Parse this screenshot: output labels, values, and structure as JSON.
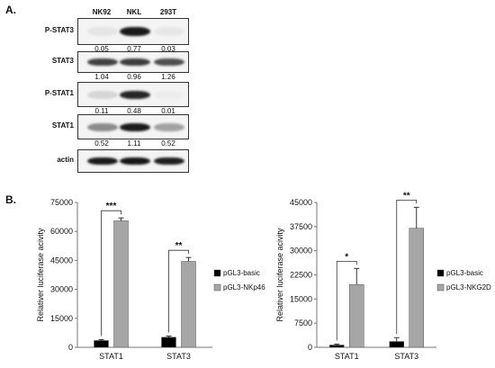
{
  "panel_a": {
    "label": "A.",
    "columns": [
      "NK92",
      "NKL",
      "293T"
    ],
    "blots": [
      {
        "name": "P-STAT3",
        "quant": [
          "0.05",
          "0.77",
          "0.03"
        ],
        "intensity": [
          0.05,
          0.95,
          0.04
        ]
      },
      {
        "name": "STAT3",
        "quant": [
          "1.04",
          "0.96",
          "1.26"
        ],
        "intensity": [
          0.78,
          0.8,
          0.72
        ]
      },
      {
        "name": "P-STAT1",
        "quant": [
          "0.11",
          "0.48",
          "0.01"
        ],
        "intensity": [
          0.12,
          0.9,
          0.02
        ]
      },
      {
        "name": "STAT1",
        "quant": [
          "0.52",
          "1.11",
          "0.52"
        ],
        "intensity": [
          0.45,
          0.95,
          0.35
        ]
      },
      {
        "name": "actin",
        "quant": [],
        "intensity": [
          0.95,
          0.97,
          0.93
        ]
      }
    ]
  },
  "panel_b": {
    "label": "B."
  },
  "chart_data": [
    {
      "type": "bar",
      "categories": [
        "STAT1",
        "STAT3"
      ],
      "series": [
        {
          "name": "pGL3-basic",
          "values": [
            3500,
            5200
          ],
          "errors": [
            500,
            600
          ],
          "color": "#000000"
        },
        {
          "name": "pGL3-NKp46",
          "values": [
            65500,
            44500
          ],
          "errors": [
            1500,
            2000
          ],
          "color": "#a6a6a6"
        }
      ],
      "ylabel": "Relativer luciferase acivity",
      "ylim": [
        0,
        75000
      ],
      "yticks": [
        "0",
        "15000",
        "30000",
        "45000",
        "60000",
        "75000"
      ],
      "significance": [
        "***",
        "**"
      ],
      "legend": "right"
    },
    {
      "type": "bar",
      "categories": [
        "STAT1",
        "STAT3"
      ],
      "series": [
        {
          "name": "pGL3-basic",
          "values": [
            700,
            1800
          ],
          "errors": [
            300,
            1200
          ],
          "color": "#000000"
        },
        {
          "name": "pGL3-NKG2D",
          "values": [
            19500,
            37000
          ],
          "errors": [
            5000,
            6500
          ],
          "color": "#a6a6a6"
        }
      ],
      "ylabel": "Relativer luciferase acivity",
      "ylim": [
        0,
        45000
      ],
      "yticks": [
        "0",
        "7500",
        "15000",
        "22500",
        "30000",
        "37500",
        "45000"
      ],
      "significance": [
        "*",
        "**"
      ],
      "legend": "right"
    }
  ]
}
